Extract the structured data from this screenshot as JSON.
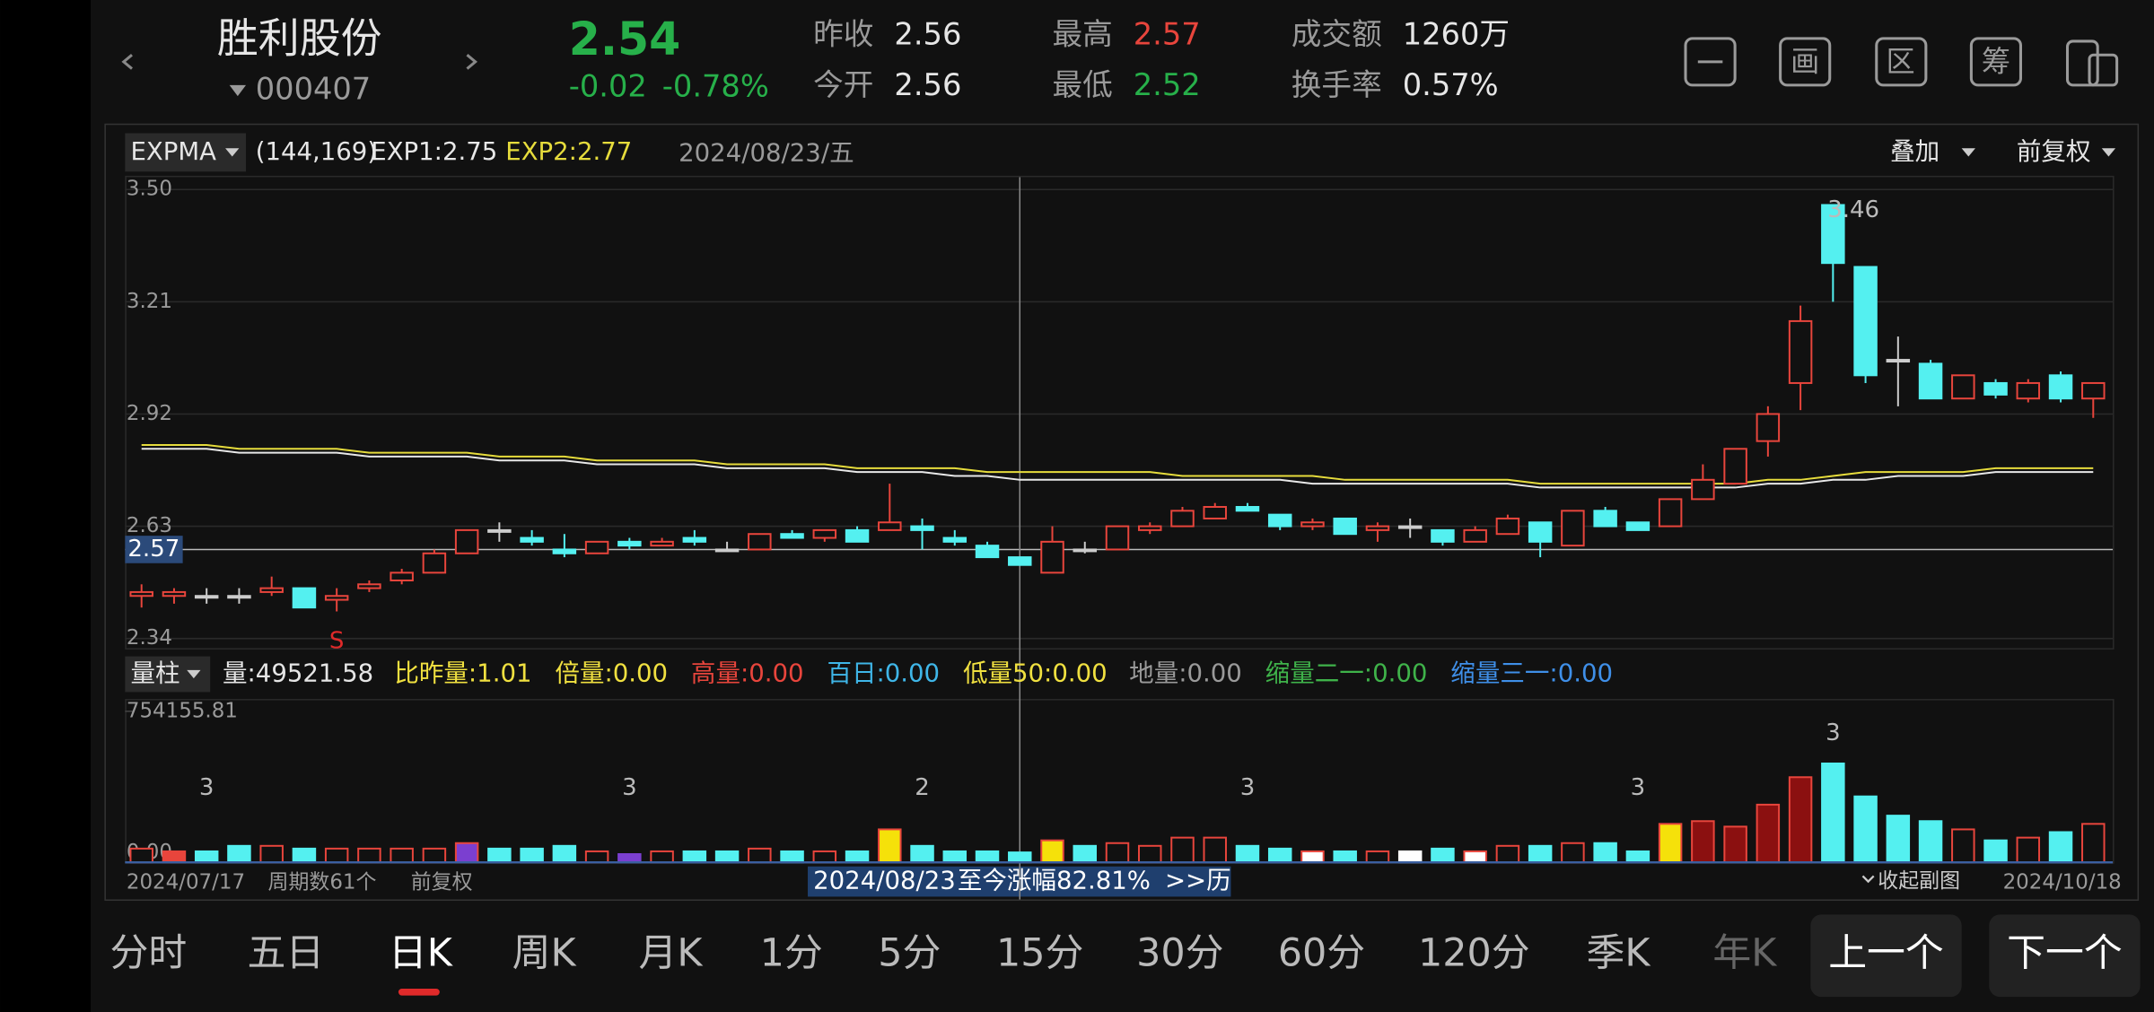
{
  "header": {
    "name": "胜利股份",
    "code": "000407",
    "price": "2.54",
    "change": "-0.02",
    "change_pct": "-0.78%",
    "quote": [
      {
        "label": "昨收",
        "value": "2.56",
        "color": "#e6e6e6"
      },
      {
        "label": "今开",
        "value": "2.56",
        "color": "#e6e6e6"
      },
      {
        "label": "最高",
        "value": "2.57",
        "color": "#e8453c"
      },
      {
        "label": "最低",
        "value": "2.52",
        "color": "#27b04a"
      },
      {
        "label": "成交额",
        "value": "1260万",
        "color": "#e6e6e6"
      },
      {
        "label": "换手率",
        "value": "0.57%",
        "color": "#e6e6e6"
      }
    ],
    "tools": [
      "画",
      "区",
      "筹"
    ]
  },
  "chart_data": [
    {
      "type": "candlestick",
      "indicator": "EXPMA",
      "indicator_params": "(144,169)",
      "cursor_date": "2024/08/23/五",
      "overlay_menu": "叠加",
      "adjust_menu": "前复权",
      "categories": [
        "2024/07/17",
        null,
        null,
        null,
        null,
        null,
        null,
        null,
        null,
        null,
        null,
        null,
        null,
        null,
        null,
        null,
        null,
        null,
        null,
        null,
        null,
        null,
        null,
        null,
        null,
        null,
        null,
        "2024/08/23",
        null,
        null,
        null,
        null,
        null,
        null,
        null,
        null,
        null,
        null,
        null,
        null,
        null,
        null,
        null,
        null,
        null,
        null,
        null,
        null,
        null,
        null,
        null,
        null,
        null,
        null,
        null,
        null,
        null,
        null,
        null,
        null,
        "2024/10/18"
      ],
      "open": [
        2.45,
        2.45,
        2.45,
        2.45,
        2.46,
        2.47,
        2.44,
        2.47,
        2.49,
        2.51,
        2.56,
        2.62,
        2.6,
        2.57,
        2.56,
        2.59,
        2.58,
        2.6,
        2.57,
        2.57,
        2.61,
        2.6,
        2.62,
        2.62,
        2.63,
        2.6,
        2.58,
        2.55,
        2.51,
        2.57,
        2.57,
        2.62,
        2.63,
        2.65,
        2.68,
        2.66,
        2.63,
        2.65,
        2.62,
        2.63,
        2.62,
        2.59,
        2.61,
        2.64,
        2.58,
        2.67,
        2.64,
        2.63,
        2.7,
        2.74,
        2.85,
        3.0,
        3.46,
        3.3,
        3.06,
        3.05,
        2.96,
        3.0,
        2.96,
        3.02,
        2.96
      ],
      "close": [
        2.46,
        2.46,
        2.45,
        2.45,
        2.47,
        2.42,
        2.45,
        2.48,
        2.51,
        2.56,
        2.62,
        2.62,
        2.59,
        2.56,
        2.59,
        2.58,
        2.59,
        2.59,
        2.57,
        2.61,
        2.6,
        2.62,
        2.59,
        2.64,
        2.62,
        2.59,
        2.55,
        2.53,
        2.59,
        2.57,
        2.63,
        2.63,
        2.67,
        2.68,
        2.67,
        2.63,
        2.64,
        2.61,
        2.63,
        2.63,
        2.59,
        2.62,
        2.65,
        2.59,
        2.67,
        2.63,
        2.62,
        2.7,
        2.75,
        2.83,
        2.92,
        3.16,
        3.31,
        3.02,
        3.06,
        2.96,
        3.02,
        2.97,
        3.0,
        2.96,
        3.0
      ],
      "high": [
        2.48,
        2.47,
        2.47,
        2.47,
        2.5,
        2.47,
        2.47,
        2.49,
        2.52,
        2.57,
        2.62,
        2.64,
        2.62,
        2.61,
        2.59,
        2.6,
        2.6,
        2.62,
        2.59,
        2.61,
        2.62,
        2.62,
        2.63,
        2.74,
        2.65,
        2.62,
        2.59,
        2.55,
        2.63,
        2.59,
        2.63,
        2.64,
        2.68,
        2.69,
        2.69,
        2.66,
        2.65,
        2.65,
        2.64,
        2.65,
        2.62,
        2.63,
        2.66,
        2.64,
        2.67,
        2.68,
        2.64,
        2.7,
        2.79,
        2.83,
        2.94,
        3.2,
        3.46,
        3.3,
        3.12,
        3.06,
        3.02,
        3.01,
        3.01,
        3.03,
        3.0
      ],
      "low": [
        2.42,
        2.43,
        2.43,
        2.43,
        2.45,
        2.42,
        2.41,
        2.46,
        2.48,
        2.51,
        2.56,
        2.59,
        2.58,
        2.55,
        2.56,
        2.57,
        2.58,
        2.58,
        2.57,
        2.57,
        2.6,
        2.59,
        2.59,
        2.62,
        2.57,
        2.58,
        2.55,
        2.53,
        2.51,
        2.56,
        2.57,
        2.61,
        2.63,
        2.65,
        2.67,
        2.62,
        2.62,
        2.61,
        2.59,
        2.6,
        2.58,
        2.59,
        2.61,
        2.55,
        2.58,
        2.63,
        2.62,
        2.63,
        2.7,
        2.74,
        2.81,
        2.93,
        3.21,
        3.0,
        2.94,
        2.96,
        2.96,
        2.96,
        2.95,
        2.95,
        2.91
      ],
      "series": [
        {
          "name": "EXP1:2.75",
          "color": "#e8e8e8",
          "values": [
            2.83,
            2.83,
            2.83,
            2.82,
            2.82,
            2.82,
            2.82,
            2.81,
            2.81,
            2.81,
            2.81,
            2.8,
            2.8,
            2.8,
            2.79,
            2.79,
            2.79,
            2.79,
            2.78,
            2.78,
            2.78,
            2.78,
            2.77,
            2.77,
            2.77,
            2.76,
            2.76,
            2.75,
            2.75,
            2.75,
            2.75,
            2.75,
            2.75,
            2.75,
            2.75,
            2.75,
            2.74,
            2.74,
            2.74,
            2.74,
            2.74,
            2.74,
            2.74,
            2.73,
            2.73,
            2.73,
            2.73,
            2.73,
            2.73,
            2.73,
            2.74,
            2.74,
            2.75,
            2.75,
            2.76,
            2.76,
            2.76,
            2.77,
            2.77,
            2.77,
            2.77
          ]
        },
        {
          "name": "EXP2:2.77",
          "color": "#e6dc3c",
          "values": [
            2.84,
            2.84,
            2.84,
            2.83,
            2.83,
            2.83,
            2.83,
            2.82,
            2.82,
            2.82,
            2.82,
            2.81,
            2.81,
            2.81,
            2.8,
            2.8,
            2.8,
            2.8,
            2.79,
            2.79,
            2.79,
            2.79,
            2.78,
            2.78,
            2.78,
            2.78,
            2.77,
            2.77,
            2.77,
            2.77,
            2.77,
            2.77,
            2.76,
            2.76,
            2.76,
            2.76,
            2.76,
            2.75,
            2.75,
            2.75,
            2.75,
            2.75,
            2.75,
            2.74,
            2.74,
            2.74,
            2.74,
            2.74,
            2.74,
            2.74,
            2.75,
            2.75,
            2.76,
            2.77,
            2.77,
            2.77,
            2.77,
            2.78,
            2.78,
            2.78,
            2.78
          ]
        }
      ],
      "ylim": [
        2.34,
        3.5
      ],
      "yticks": [
        2.34,
        2.63,
        2.92,
        3.21,
        {
          "value": 3.5,
          "label": "3.50"
        }
      ],
      "grid": true,
      "price_line": 2.57,
      "up_color": "#e8453c",
      "down_color": "#54f0f0",
      "flat_color": "#cccccc",
      "annotations": [
        {
          "index": 52,
          "label": "3.46"
        },
        {
          "index": 6,
          "label": "S"
        }
      ]
    },
    {
      "type": "bar",
      "menu": "量柱",
      "stats": [
        {
          "text": "量:49521.58",
          "color": "#e6e6e6"
        },
        {
          "text": "比昨量:1.01",
          "color": "#f0e040"
        },
        {
          "text": "倍量:0.00",
          "color": "#f0e040"
        },
        {
          "text": "高量:0.00",
          "color": "#e8453c"
        },
        {
          "text": "百日:0.00",
          "color": "#3fb6e8"
        },
        {
          "text": "低量50:0.00",
          "color": "#f0e040"
        },
        {
          "text": "地量:0.00",
          "color": "#9a9a9a"
        },
        {
          "text": "缩量二一:0.00",
          "color": "#3fb34a"
        },
        {
          "text": "缩量三一:0.00",
          "color": "#3f8fe8"
        }
      ],
      "values": [
        68560,
        54848,
        54848,
        82272,
        82272,
        68560,
        68560,
        68560,
        68560,
        68560,
        95984,
        68560,
        68560,
        82272,
        54848,
        41136,
        54848,
        54848,
        54848,
        68560,
        54848,
        54848,
        54848,
        164544,
        82272,
        54848,
        54848,
        49521.58,
        109696,
        82272,
        95984,
        82272,
        123408,
        123408,
        82272,
        68560,
        54848,
        54848,
        54848,
        54848,
        68560,
        54848,
        82272,
        82272,
        95984,
        95984,
        54848,
        191968,
        205680,
        178256,
        287952,
        425072,
        493632,
        329088,
        233104,
        205680,
        164544,
        109696,
        123408,
        150832,
        191968
      ],
      "ylim": [
        0,
        754155.81
      ],
      "yticks": [
        {
          "value": 0,
          "label": "0.00"
        },
        754155.81
      ],
      "highlights": [
        {
          "index": 1,
          "color": "#e8453c"
        },
        {
          "index": 10,
          "color": "#7b3fd0"
        },
        {
          "index": 15,
          "color": "#7b3fd0"
        },
        {
          "index": 23,
          "color": "#f5e10a"
        },
        {
          "index": 28,
          "color": "#f5e10a"
        },
        {
          "index": 36,
          "color": "#ffffff"
        },
        {
          "index": 39,
          "color": "#ffffff"
        },
        {
          "index": 41,
          "color": "#ffffff"
        },
        {
          "index": 47,
          "color": "#f5e10a"
        },
        {
          "index": 48,
          "color": "#8b1010"
        },
        {
          "index": 49,
          "color": "#8b1010"
        },
        {
          "index": 50,
          "color": "#8b1010"
        },
        {
          "index": 51,
          "color": "#8b1010"
        }
      ],
      "annotations": [
        {
          "index": 2,
          "label": "3"
        },
        {
          "index": 15,
          "label": "3"
        },
        {
          "index": 24,
          "label": "2"
        },
        {
          "index": 34,
          "label": "3"
        },
        {
          "index": 46,
          "label": "3"
        },
        {
          "index": 52,
          "label": "3"
        }
      ],
      "period_count": "周期数61个",
      "adjust": "前复权",
      "gain": "至今涨幅82.81%",
      "history": ">>历",
      "collapse": "收起副图"
    }
  ],
  "tabs": [
    {
      "label": "分时"
    },
    {
      "label": "五日"
    },
    {
      "label": "日K",
      "active": true
    },
    {
      "label": "周K"
    },
    {
      "label": "月K"
    },
    {
      "label": "1分"
    },
    {
      "label": "5分"
    },
    {
      "label": "15分"
    },
    {
      "label": "30分"
    },
    {
      "label": "60分"
    },
    {
      "label": "120分"
    },
    {
      "label": "季K"
    },
    {
      "label": "年K"
    }
  ],
  "buttons": [
    "上一个",
    "下一个"
  ]
}
